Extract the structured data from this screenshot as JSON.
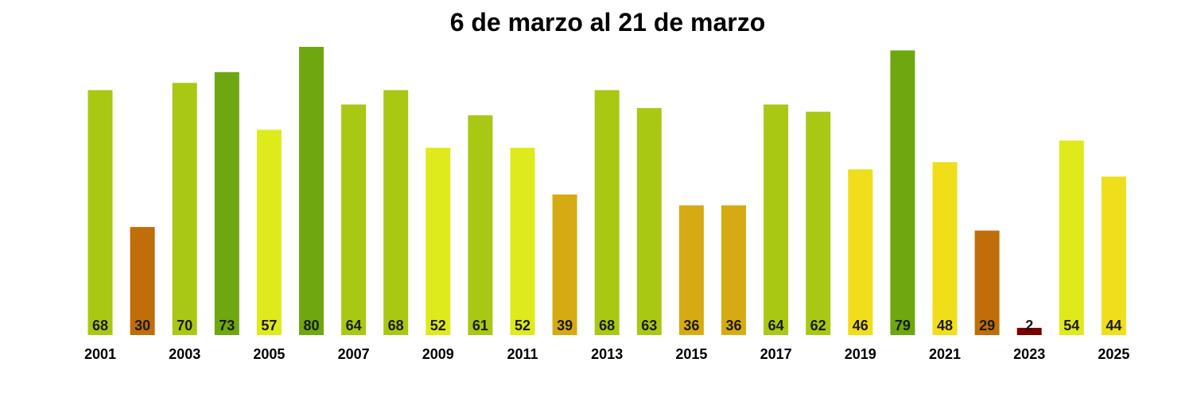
{
  "chart_data": {
    "type": "bar",
    "title": "6 de marzo al 21 de marzo",
    "categories": [
      "2001",
      "2002",
      "2003",
      "2004",
      "2005",
      "2006",
      "2007",
      "2008",
      "2009",
      "2010",
      "2011",
      "2012",
      "2013",
      "2014",
      "2015",
      "2016",
      "2017",
      "2018",
      "2019",
      "2020",
      "2021",
      "2022",
      "2023",
      "2024",
      "2025"
    ],
    "values": [
      68,
      30,
      70,
      73,
      57,
      80,
      64,
      68,
      52,
      61,
      52,
      39,
      68,
      63,
      36,
      36,
      64,
      62,
      46,
      79,
      48,
      29,
      2,
      54,
      44
    ],
    "colors": [
      "#a8c813",
      "#bf6e0a",
      "#a8c813",
      "#6ea70f",
      "#dfea1c",
      "#6ea70f",
      "#a8c813",
      "#a8c813",
      "#dfea1c",
      "#a8c813",
      "#dfea1c",
      "#d6aa12",
      "#a8c813",
      "#a8c813",
      "#d6aa12",
      "#d6aa12",
      "#a8c813",
      "#a8c813",
      "#f0de1a",
      "#6ea70f",
      "#f0de1a",
      "#bf6e0a",
      "#7a0000",
      "#dfea1c",
      "#f0de1a"
    ],
    "tick_labels": [
      "2001",
      "2003",
      "2005",
      "2007",
      "2009",
      "2011",
      "2013",
      "2015",
      "2017",
      "2019",
      "2021",
      "2023",
      "2025"
    ],
    "ylim": [
      0,
      80
    ],
    "grid": false,
    "legend": "none",
    "xlabel": "",
    "ylabel": ""
  }
}
